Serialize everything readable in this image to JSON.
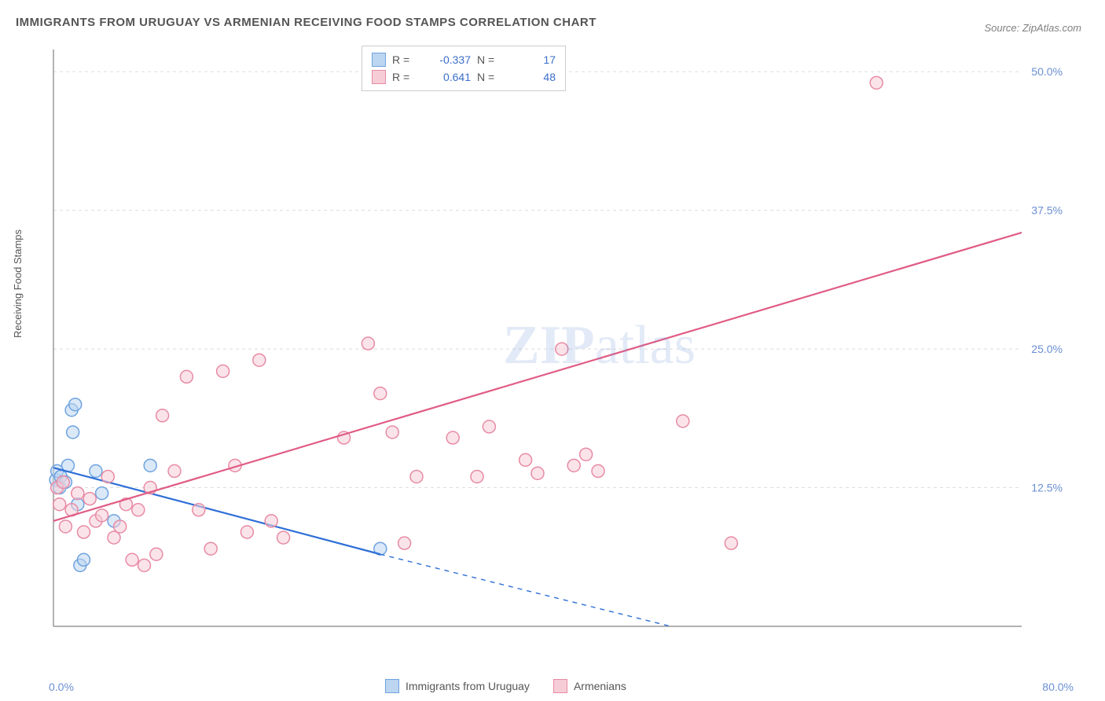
{
  "title": "IMMIGRANTS FROM URUGUAY VS ARMENIAN RECEIVING FOOD STAMPS CORRELATION CHART",
  "source": "Source: ZipAtlas.com",
  "ylabel": "Receiving Food Stamps",
  "watermark_zip": "ZIP",
  "watermark_atlas": "atlas",
  "chart": {
    "type": "scatter",
    "background_color": "#ffffff",
    "grid_color": "#dddddd",
    "axis_color": "#999999",
    "text_color": "#555555",
    "value_color": "#3b6fc9",
    "xlim": [
      0,
      80
    ],
    "ylim": [
      0,
      52
    ],
    "yticks": [
      {
        "v": 12.5,
        "label": "12.5%"
      },
      {
        "v": 25.0,
        "label": "25.0%"
      },
      {
        "v": 37.5,
        "label": "37.5%"
      },
      {
        "v": 50.0,
        "label": "50.0%"
      }
    ],
    "xtick_left": "0.0%",
    "xtick_right": "80.0%",
    "marker_radius": 8,
    "marker_stroke_width": 1.5,
    "line_width": 2.2,
    "series": [
      {
        "name": "Immigrants from Uruguay",
        "color_fill": "#bcd5f0",
        "color_stroke": "#6fa3e0",
        "line_color": "#2e6fd6",
        "R": "-0.337",
        "N": "17",
        "trend": {
          "x1": 0,
          "y1": 14.3,
          "x2": 27,
          "y2": 6.5,
          "dash_x2": 51,
          "dash_y2": 0
        },
        "points": [
          [
            0.2,
            13.2
          ],
          [
            0.3,
            14.0
          ],
          [
            0.5,
            12.5
          ],
          [
            0.6,
            13.5
          ],
          [
            1.0,
            13.0
          ],
          [
            1.2,
            14.5
          ],
          [
            1.5,
            19.5
          ],
          [
            1.6,
            17.5
          ],
          [
            1.8,
            20.0
          ],
          [
            2.0,
            11.0
          ],
          [
            2.2,
            5.5
          ],
          [
            2.5,
            6.0
          ],
          [
            3.5,
            14.0
          ],
          [
            4.0,
            12.0
          ],
          [
            5.0,
            9.5
          ],
          [
            8.0,
            14.5
          ],
          [
            27.0,
            7.0
          ]
        ]
      },
      {
        "name": "Armenians",
        "color_fill": "#f6cdd7",
        "color_stroke": "#e88ba4",
        "line_color": "#e05c85",
        "R": "0.641",
        "N": "48",
        "trend": {
          "x1": 0,
          "y1": 9.5,
          "x2": 80,
          "y2": 35.5
        },
        "points": [
          [
            0.3,
            12.5
          ],
          [
            0.5,
            11.0
          ],
          [
            0.8,
            13.0
          ],
          [
            1.0,
            9.0
          ],
          [
            1.5,
            10.5
          ],
          [
            2.0,
            12.0
          ],
          [
            2.5,
            8.5
          ],
          [
            3.0,
            11.5
          ],
          [
            3.5,
            9.5
          ],
          [
            4.0,
            10.0
          ],
          [
            4.5,
            13.5
          ],
          [
            5.0,
            8.0
          ],
          [
            5.5,
            9.0
          ],
          [
            6.0,
            11.0
          ],
          [
            6.5,
            6.0
          ],
          [
            7.0,
            10.5
          ],
          [
            7.5,
            5.5
          ],
          [
            8.0,
            12.5
          ],
          [
            8.5,
            6.5
          ],
          [
            9.0,
            19.0
          ],
          [
            10.0,
            14.0
          ],
          [
            11.0,
            22.5
          ],
          [
            12.0,
            10.5
          ],
          [
            13.0,
            7.0
          ],
          [
            14.0,
            23.0
          ],
          [
            15.0,
            14.5
          ],
          [
            16.0,
            8.5
          ],
          [
            17.0,
            24.0
          ],
          [
            18.0,
            9.5
          ],
          [
            19.0,
            8.0
          ],
          [
            24.0,
            17.0
          ],
          [
            26.0,
            25.5
          ],
          [
            27.0,
            21.0
          ],
          [
            28.0,
            17.5
          ],
          [
            29.0,
            7.5
          ],
          [
            30.0,
            13.5
          ],
          [
            33.0,
            17.0
          ],
          [
            35.0,
            13.5
          ],
          [
            36.0,
            18.0
          ],
          [
            39.0,
            15.0
          ],
          [
            40.0,
            13.8
          ],
          [
            42.0,
            25.0
          ],
          [
            43.0,
            14.5
          ],
          [
            44.0,
            15.5
          ],
          [
            45.0,
            14.0
          ],
          [
            52.0,
            18.5
          ],
          [
            56.0,
            7.5
          ],
          [
            68.0,
            49.0
          ]
        ]
      }
    ]
  },
  "legend_bottom": [
    {
      "label": "Immigrants from Uruguay",
      "fill": "#bcd5f0",
      "stroke": "#6fa3e0"
    },
    {
      "label": "Armenians",
      "fill": "#f6cdd7",
      "stroke": "#e88ba4"
    }
  ]
}
